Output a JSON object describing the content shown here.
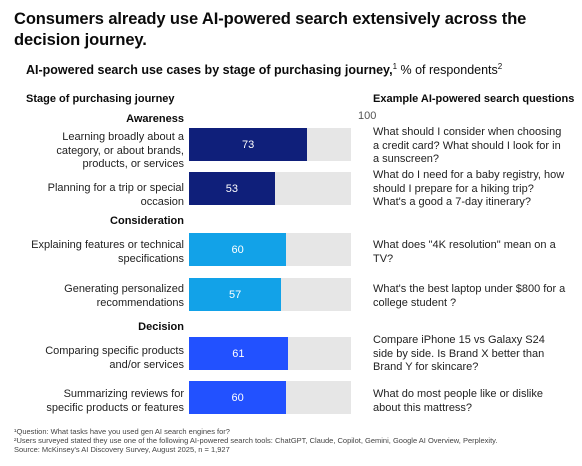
{
  "title": "Consumers already use AI-powered search extensively across the decision journey.",
  "subtitle": {
    "bold": "AI-powered search use cases by stage of purchasing journey,",
    "sup1": "1",
    "rest": " % of respondents",
    "sup2": "2"
  },
  "columns": {
    "left": "Stage of purchasing journey",
    "right": "Example AI-powered search questions"
  },
  "colors": {
    "awareness": "#0f1f7a",
    "consideration": "#12a2e8",
    "decision": "#2251ff",
    "track": "#e6e6e6"
  },
  "chart_data": {
    "type": "bar",
    "orientation": "horizontal",
    "xlim": [
      0,
      100
    ],
    "max_label": "100",
    "groups": [
      {
        "stage": "Awareness",
        "items": [
          {
            "category": "Learning broadly about a category, or about brands, products, or services",
            "value": 73,
            "question": "What should I consider when choosing a credit card? What should I look for in a sunscreen?"
          },
          {
            "category": "Planning for a trip or special occasion",
            "value": 53,
            "question": "What do I need for a baby registry, how should I prepare for a hiking trip? What's a good a 7-day itinerary?"
          }
        ]
      },
      {
        "stage": "Consideration",
        "items": [
          {
            "category": "Explaining features or technical specifications",
            "value": 60,
            "question": "What does \"4K resolution\" mean on a TV?"
          },
          {
            "category": "Generating personalized recommendations",
            "value": 57,
            "question": "What's the best laptop under $800 for a college student ?"
          }
        ]
      },
      {
        "stage": "Decision",
        "items": [
          {
            "category": "Comparing specific products and/or services",
            "value": 61,
            "question": "Compare iPhone 15 vs Galaxy S24 side by side. Is Brand X better than Brand Y for skincare?"
          },
          {
            "category": "Summarizing reviews for specific products or features",
            "value": 60,
            "question": "What do most people like or dislike about this mattress?"
          }
        ]
      }
    ]
  },
  "footnotes": [
    "¹Question: What tasks have you used gen AI search engines for?",
    "²Users surveyed stated they use one of the following AI-powered search tools: ChatGPT, Claude, Copilot, Gemini, Google AI Overview, Perplexity.",
    "Source: McKinsey's AI Discovery Survey, August 2025, n = 1,927"
  ]
}
